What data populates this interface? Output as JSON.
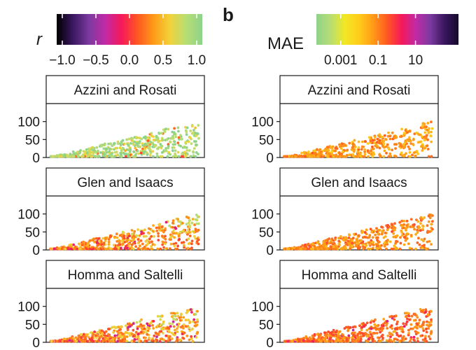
{
  "figure": {
    "panel_label_right": "b",
    "legend_left_title": "r",
    "legend_left_ticks": [
      "−1.0",
      "−0.5",
      "0.0",
      "0.5",
      "1.0"
    ],
    "legend_left_range": [
      -1.0,
      1.0
    ],
    "legend_left_tick_values": [
      -1.0,
      -0.5,
      0.0,
      0.5,
      1.0
    ],
    "legend_left_colors": [
      "#000000",
      "#3a1760",
      "#7c3aa0",
      "#c12aa6",
      "#f5195a",
      "#ff5722",
      "#ff9a17",
      "#f2d33a",
      "#b7de74",
      "#8ed38a"
    ],
    "legend_right_title": "MAE",
    "legend_right_ticks": [
      "0.001",
      "0.1",
      "10"
    ],
    "legend_right_range": [
      0.0001,
      1000
    ],
    "legend_right_tick_values": [
      0.001,
      0.1,
      10
    ],
    "legend_right_colors": [
      "#8ed38a",
      "#b7de74",
      "#f2e825",
      "#ffcc1a",
      "#ff9a17",
      "#ff5722",
      "#f5195a",
      "#c12aa6",
      "#7c3aa0",
      "#3a1760",
      "#150a2a"
    ]
  },
  "chart_data": [
    {
      "type": "scatter",
      "title": "Azzini and Rosati",
      "metric": "r",
      "column": "left",
      "yticks": [
        "0",
        "50",
        "100"
      ],
      "ylim": [
        0,
        150
      ],
      "value_summary": {
        "min": 0.05,
        "max": 1.0,
        "typical": 0.85
      }
    },
    {
      "type": "scatter",
      "title": "Glen and Isaacs",
      "metric": "r",
      "column": "left",
      "yticks": [
        "0",
        "50",
        "100"
      ],
      "ylim": [
        0,
        150
      ],
      "value_summary": {
        "min": -0.2,
        "max": 1.0,
        "typical": 0.45
      }
    },
    {
      "type": "scatter",
      "title": "Homma and Saltelli",
      "metric": "r",
      "column": "left",
      "yticks": [
        "0",
        "50",
        "100"
      ],
      "ylim": [
        0,
        150
      ],
      "value_summary": {
        "min": -0.3,
        "max": 1.0,
        "typical": 0.35
      }
    },
    {
      "type": "scatter",
      "title": "Azzini and Rosati",
      "metric": "MAE",
      "column": "right",
      "yticks": [
        "0",
        "50",
        "100"
      ],
      "ylim": [
        0,
        150
      ],
      "value_summary": {
        "min": 0.001,
        "max": 0.3,
        "typical": 0.05
      }
    },
    {
      "type": "scatter",
      "title": "Glen and Isaacs",
      "metric": "MAE",
      "column": "right",
      "yticks": [
        "0",
        "50",
        "100"
      ],
      "ylim": [
        0,
        150
      ],
      "value_summary": {
        "min": 0.01,
        "max": 0.5,
        "typical": 0.08
      }
    },
    {
      "type": "scatter",
      "title": "Homma and Saltelli",
      "metric": "MAE",
      "column": "right",
      "yticks": [
        "0",
        "50",
        "100"
      ],
      "ylim": [
        0,
        150
      ],
      "value_summary": {
        "min": 0.01,
        "max": 5.0,
        "typical": 0.15
      }
    }
  ]
}
